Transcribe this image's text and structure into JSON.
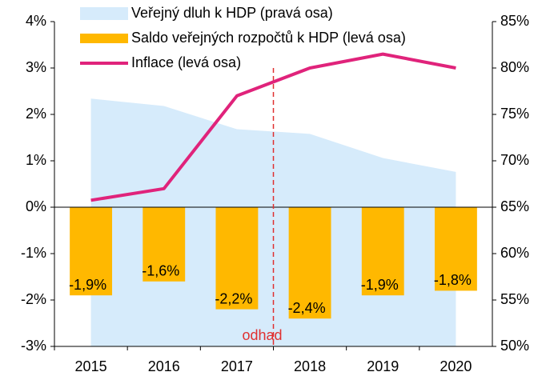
{
  "chart_data": {
    "type": "combo",
    "categories": [
      "2015",
      "2016",
      "2017",
      "2018",
      "2019",
      "2020"
    ],
    "series": [
      {
        "name": "Veřejný dluh k HDP (pravá osa)",
        "type": "area",
        "axis": "y2",
        "color": "#d6ebfb",
        "values": [
          76.7,
          75.9,
          73.4,
          72.9,
          70.3,
          68.8
        ]
      },
      {
        "name": "Saldo veřejných rozpočtů k HDP (levá osa)",
        "type": "bar",
        "color": "#ffb800",
        "values": [
          -1.9,
          -1.6,
          -2.2,
          -2.4,
          -1.9,
          -1.8
        ],
        "value_labels": [
          "-1,9%",
          "-1,6%",
          "-2,2%",
          "-2,4%",
          "-1,9%",
          "-1,8%"
        ]
      },
      {
        "name": "Inflace (levá osa)",
        "type": "line",
        "color": "#e0237b",
        "values": [
          0.15,
          0.4,
          2.4,
          3.0,
          3.3,
          3.0
        ]
      }
    ],
    "annotation": "odhad",
    "ylim": [
      -3,
      4
    ],
    "yticks": [
      {
        "value": -3,
        "label": "-3%"
      },
      {
        "value": -2,
        "label": "-2%"
      },
      {
        "value": -1,
        "label": "-1%"
      },
      {
        "value": 0,
        "label": "0%"
      },
      {
        "value": 1,
        "label": "1%"
      },
      {
        "value": 2,
        "label": "2%"
      },
      {
        "value": 3,
        "label": "3%"
      },
      {
        "value": 4,
        "label": "4%"
      }
    ],
    "y2lim": [
      50,
      85
    ],
    "y2ticks": [
      {
        "value": 50,
        "label": "50%"
      },
      {
        "value": 55,
        "label": "55%"
      },
      {
        "value": 60,
        "label": "60%"
      },
      {
        "value": 65,
        "label": "65%"
      },
      {
        "value": 70,
        "label": "70%"
      },
      {
        "value": 75,
        "label": "75%"
      },
      {
        "value": 80,
        "label": "80%"
      },
      {
        "value": 85,
        "label": "85%"
      }
    ],
    "legend": "top"
  }
}
